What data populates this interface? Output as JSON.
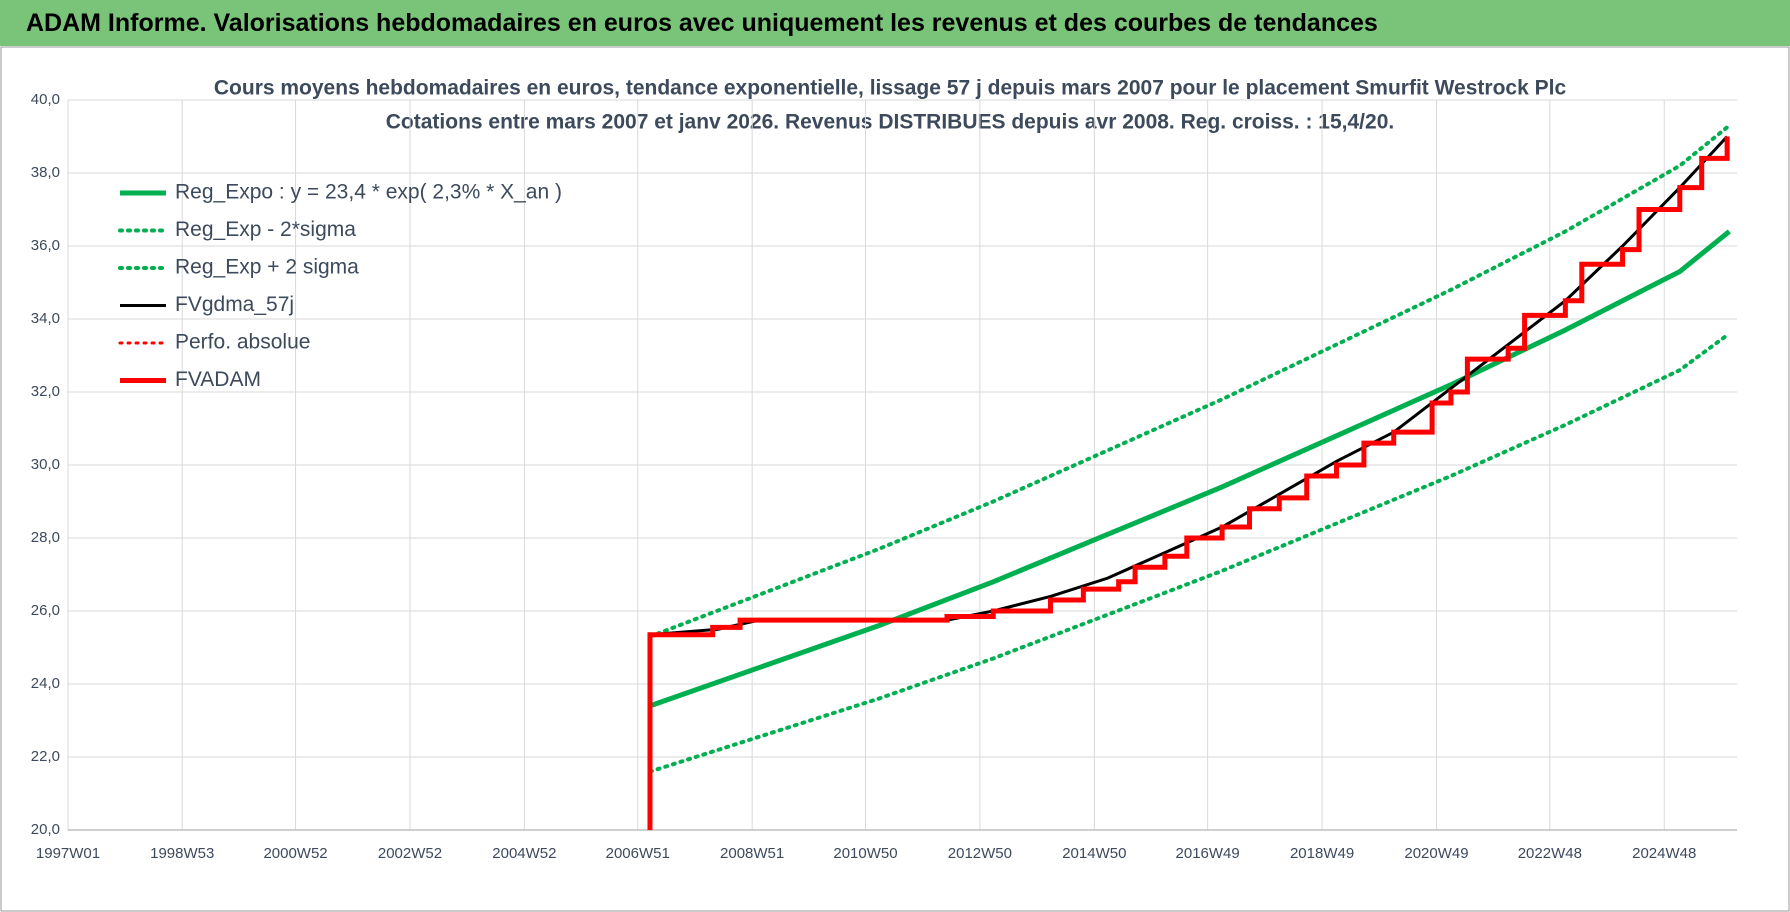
{
  "header": {
    "title": "ADAM Informe. Valorisations hebdomadaires en euros avec uniquement les revenus et des courbes de tendances"
  },
  "chart_data": {
    "type": "line",
    "title": "Cours moyens hebdomadaires en euros, tendance exponentielle, lissage 57 j depuis mars 2007 pour le placement Smurfit Westrock Plc",
    "subtitle": "Cotations entre mars 2007 et janv 2026. Revenus DISTRIBUES depuis avr 2008. Reg. croiss. : 15,4/20.",
    "xlim": [
      "1997W01",
      "2026W10"
    ],
    "xticks": [
      "1997W01",
      "1998W53",
      "2000W52",
      "2002W52",
      "2004W52",
      "2006W51",
      "2008W51",
      "2010W50",
      "2012W50",
      "2014W50",
      "2016W49",
      "2018W49",
      "2020W49",
      "2022W48",
      "2024W48"
    ],
    "ylim": [
      20,
      40
    ],
    "yticks": [
      {
        "value": 20,
        "label": "20,0"
      },
      {
        "value": 22,
        "label": "22,0"
      },
      {
        "value": 24,
        "label": "24,0"
      },
      {
        "value": 26,
        "label": "26,0"
      },
      {
        "value": 28,
        "label": "28,0"
      },
      {
        "value": 30,
        "label": "30,0"
      },
      {
        "value": 32,
        "label": "32,0"
      },
      {
        "value": 34,
        "label": "34,0"
      },
      {
        "value": 36,
        "label": "36,0"
      },
      {
        "value": 38,
        "label": "38,0"
      },
      {
        "value": 40,
        "label": "40,0"
      }
    ],
    "grid": true,
    "legend": "top-left",
    "series": [
      {
        "name": "Reg_Expo : y = 23,4 * exp( 2,3% *  X_an )",
        "color": "#00b050",
        "dash": "solid",
        "width": 5,
        "x": [
          "2007W10",
          "2009W10",
          "2011W10",
          "2013W10",
          "2015W10",
          "2017W10",
          "2019W10",
          "2021W10",
          "2023W10",
          "2025W10",
          "2026W03"
        ],
        "values": [
          23.4,
          24.5,
          25.6,
          26.8,
          28.1,
          29.4,
          30.8,
          32.2,
          33.7,
          35.3,
          36.4
        ]
      },
      {
        "name": "Reg_Exp - 2*sigma",
        "color": "#00b050",
        "dash": "dotted",
        "width": 4,
        "x": [
          "2007W10",
          "2009W10",
          "2011W10",
          "2013W10",
          "2015W10",
          "2017W10",
          "2019W10",
          "2021W10",
          "2023W10",
          "2025W10",
          "2026W03"
        ],
        "values": [
          21.6,
          22.6,
          23.6,
          24.7,
          25.9,
          27.1,
          28.4,
          29.7,
          31.1,
          32.6,
          33.6
        ]
      },
      {
        "name": "Reg_Exp + 2 sigma",
        "color": "#00b050",
        "dash": "dotted",
        "width": 4,
        "x": [
          "2007W10",
          "2009W10",
          "2011W10",
          "2013W10",
          "2015W10",
          "2017W10",
          "2019W10",
          "2021W10",
          "2023W10",
          "2025W10",
          "2026W03"
        ],
        "values": [
          25.3,
          26.5,
          27.7,
          29.0,
          30.4,
          31.8,
          33.3,
          34.8,
          36.4,
          38.2,
          39.3
        ]
      },
      {
        "name": "FVgdma_57j",
        "color": "#000000",
        "dash": "solid",
        "width": 3,
        "x": [
          "2007W10",
          "2008W20",
          "2009W05",
          "2012W20",
          "2013W10",
          "2014W10",
          "2015W10",
          "2016W10",
          "2017W10",
          "2018W10",
          "2019W10",
          "2020W10",
          "2021W10",
          "2022W10",
          "2023W10",
          "2024W10",
          "2025W10",
          "2026W01"
        ],
        "values": [
          25.35,
          25.5,
          25.75,
          25.75,
          26.0,
          26.4,
          26.9,
          27.6,
          28.3,
          29.2,
          30.1,
          30.9,
          32.1,
          33.3,
          34.5,
          36.0,
          37.6,
          39.0
        ]
      },
      {
        "name": "Perfo. absolue",
        "color": "#ff0000",
        "dash": "dotted",
        "width": 3,
        "x": [],
        "values": []
      },
      {
        "name": "FVADAM",
        "color": "#ff0000",
        "dash": "solid",
        "width": 5,
        "step": true,
        "x": [
          "2007W10",
          "2007W10",
          "2008W15",
          "2008W40",
          "2012W20",
          "2013W10",
          "2014W10",
          "2014W40",
          "2015W20",
          "2015W35",
          "2016W10",
          "2016W30",
          "2017W10",
          "2017W35",
          "2018W10",
          "2018W35",
          "2019W10",
          "2019W35",
          "2020W10",
          "2020W45",
          "2021W10",
          "2021W25",
          "2022W10",
          "2022W25",
          "2023W10",
          "2023W25",
          "2024W10",
          "2024W25",
          "2025W10",
          "2025W30",
          "2026W01"
        ],
        "values": [
          20,
          25.35,
          25.55,
          25.75,
          25.85,
          26.0,
          26.3,
          26.6,
          26.8,
          27.2,
          27.5,
          28.0,
          28.3,
          28.8,
          29.1,
          29.7,
          30.0,
          30.6,
          30.9,
          31.7,
          32.0,
          32.9,
          33.2,
          34.1,
          34.5,
          35.5,
          35.9,
          37.0,
          37.6,
          38.4,
          39.0
        ]
      }
    ]
  }
}
